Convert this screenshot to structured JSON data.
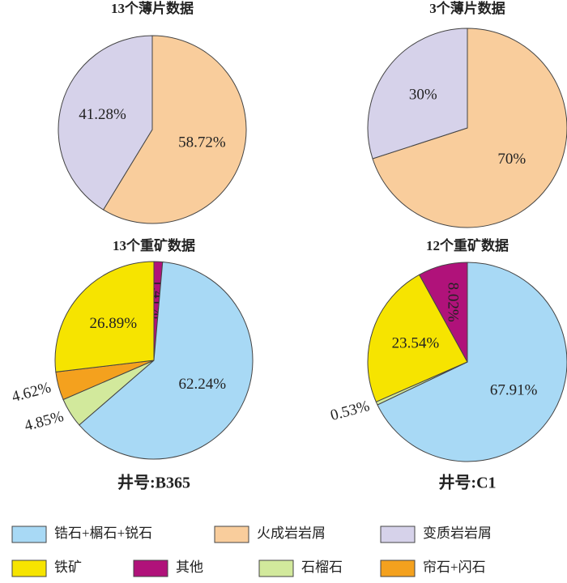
{
  "chart_data": [
    {
      "type": "pie",
      "title": "13个薄片数据",
      "values": [
        58.72,
        41.28
      ],
      "value_labels": [
        "58.72%",
        "41.28%"
      ],
      "colors": [
        "#f9cd9c",
        "#d6d2ea"
      ]
    },
    {
      "type": "pie",
      "title": "3个薄片数据",
      "values": [
        70,
        30
      ],
      "value_labels": [
        "70%",
        "30%"
      ],
      "colors": [
        "#f9cd9c",
        "#d6d2ea"
      ]
    },
    {
      "type": "pie",
      "title": "13个重矿数据",
      "values": [
        1.41,
        62.24,
        4.85,
        4.62,
        26.89
      ],
      "value_labels": [
        "1.41%",
        "62.24%",
        "4.85%",
        "4.62%",
        "26.89%"
      ],
      "colors": [
        "#b0127a",
        "#a8d9f5",
        "#d2e99c",
        "#f4a11e",
        "#f6e400"
      ],
      "note": "井号:B365"
    },
    {
      "type": "pie",
      "title": "12个重矿数据",
      "values": [
        67.91,
        0.53,
        23.54,
        8.02
      ],
      "value_labels": [
        "67.91%",
        "0.53%",
        "23.54%",
        "8.02%"
      ],
      "colors": [
        "#a8d9f5",
        "#d2e99c",
        "#f6e400",
        "#b0127a"
      ],
      "note": "井号:C1"
    }
  ],
  "legend": [
    {
      "name": "锆石+榍石+锐石",
      "color": "#a8d9f5"
    },
    {
      "name": "火成岩岩屑",
      "color": "#f9cd9c"
    },
    {
      "name": "变质岩岩屑",
      "color": "#d6d2ea"
    },
    {
      "name": "铁矿",
      "color": "#f6e400"
    },
    {
      "name": "其他",
      "color": "#b0127a"
    },
    {
      "name": "石榴石",
      "color": "#d2e99c"
    },
    {
      "name": "帘石+闪石",
      "color": "#f4a11e"
    }
  ]
}
